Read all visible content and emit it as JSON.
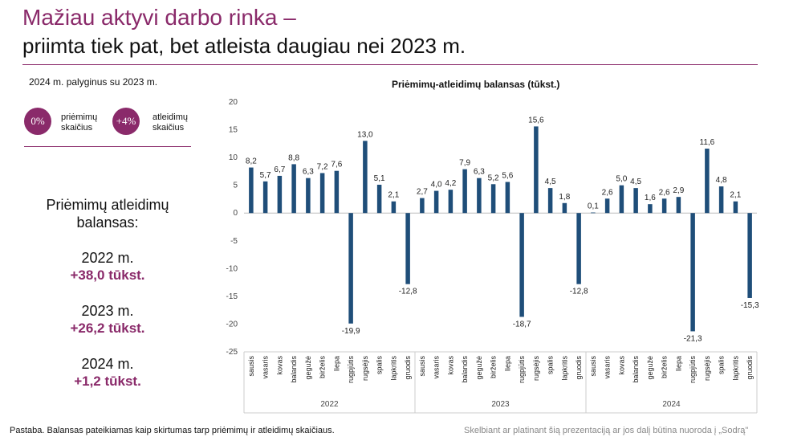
{
  "header": {
    "title_line1": "Mažiau aktyvi darbo rinka –",
    "title_line2": "priimta tiek pat, bet atleista daugiau nei 2023 m."
  },
  "comparison": {
    "caption": "2024 m. palyginus su 2023 m.",
    "hires_value": "0%",
    "hires_label_1": "priėmimų",
    "hires_label_2": "skaičius",
    "fires_value": "+4%",
    "fires_label_1": "atleidimų",
    "fires_label_2": "skaičius",
    "color": "#8a2a6a"
  },
  "balance": {
    "title_line1": "Priėmimų atleidimų",
    "title_line2": "balansas:",
    "years": [
      {
        "year": "2022 m.",
        "value": "+38,0 tūkst."
      },
      {
        "year": "2023 m.",
        "value": "+26,2 tūkst."
      },
      {
        "year": "2024 m.",
        "value": "+1,2 tūkst."
      }
    ]
  },
  "note": "Pastaba. Balansas pateikiamas kaip skirtumas tarp priėmimų ir atleidimų skaičiaus.",
  "footer": "Skelbiant ar platinant šią prezentaciją ar jos dalį būtina nuoroda į „Sodrą\"",
  "chart_data": {
    "type": "bar",
    "title": "Priėmimų-atleidimų balansas (tūkst.)",
    "ylim": [
      -25,
      20
    ],
    "yticks": [
      "20",
      "15",
      "10",
      "5",
      "0",
      "-5",
      "-10",
      "-15",
      "-20",
      "-25"
    ],
    "ytick_values": [
      20,
      15,
      10,
      5,
      0,
      -5,
      -10,
      -15,
      -20,
      -25
    ],
    "bar_color": "#1f4e79",
    "years": [
      "2022",
      "2023",
      "2024"
    ],
    "months": [
      "sausis",
      "vasaris",
      "kovas",
      "balandis",
      "gegužė",
      "birželis",
      "liepa",
      "rugpjūtis",
      "rugsėjis",
      "spalis",
      "lapkritis",
      "gruodis"
    ],
    "values": [
      8.2,
      5.7,
      6.7,
      8.8,
      6.3,
      7.2,
      7.6,
      -19.9,
      13.0,
      5.1,
      2.1,
      -12.8,
      2.7,
      4.0,
      4.2,
      7.9,
      6.3,
      5.2,
      5.6,
      -18.7,
      15.6,
      4.5,
      1.8,
      -12.8,
      0.1,
      2.6,
      5.0,
      4.5,
      1.6,
      2.6,
      2.9,
      -21.3,
      11.6,
      4.8,
      2.1,
      -15.3
    ],
    "labels": [
      "8,2",
      "5,7",
      "6,7",
      "8,8",
      "6,3",
      "7,2",
      "7,6",
      "-19,9",
      "13,0",
      "5,1",
      "2,1",
      "-12,8",
      "2,7",
      "4,0",
      "4,2",
      "7,9",
      "6,3",
      "5,2",
      "5,6",
      "-18,7",
      "15,6",
      "4,5",
      "1,8",
      "-12,8",
      "0,1",
      "2,6",
      "5,0",
      "4,5",
      "1,6",
      "2,6",
      "2,9",
      "-21,3",
      "11,6",
      "4,8",
      "2,1",
      "-15,3"
    ],
    "grid": false,
    "legend": "none"
  }
}
